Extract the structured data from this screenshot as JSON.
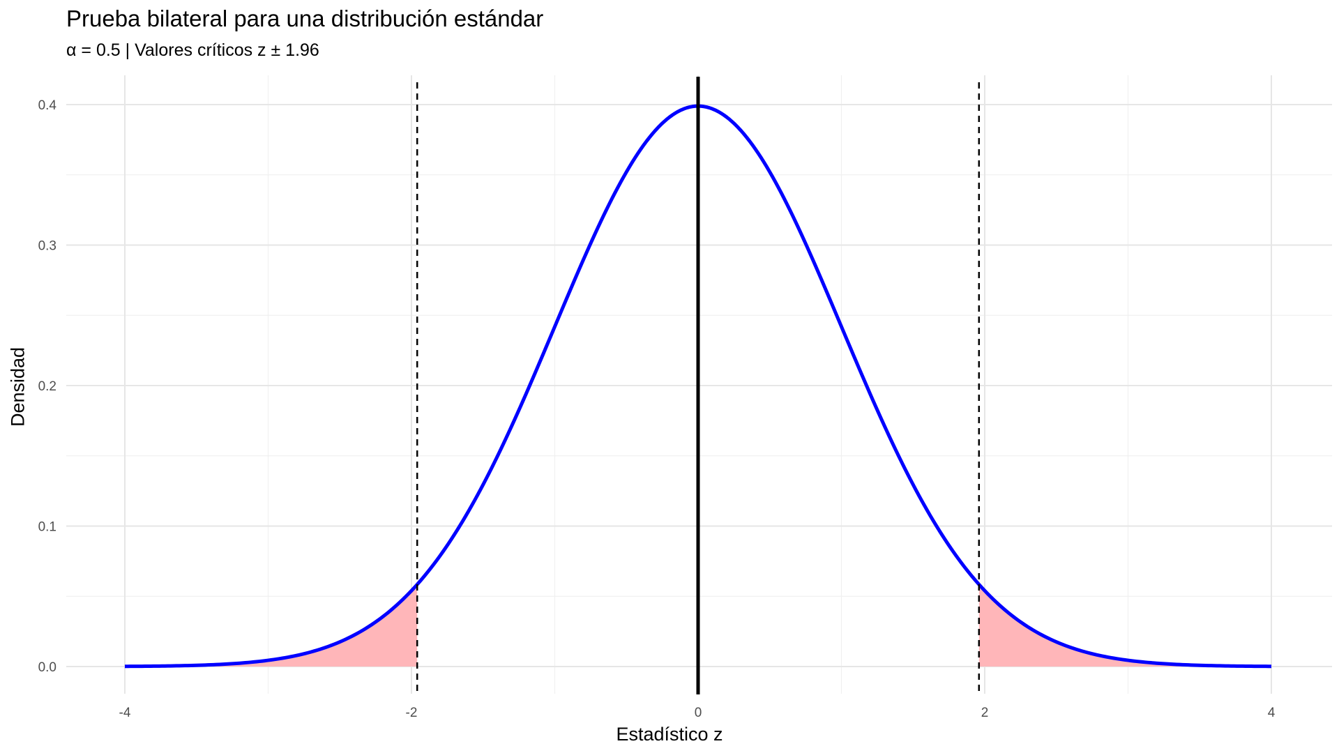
{
  "chart_data": {
    "type": "area",
    "title": "Prueba bilateral para una distribución estándar",
    "subtitle": "α = 0.5 | Valores críticos z ± 1.96",
    "xlabel": "Estadístico z",
    "ylabel": "Densidad",
    "xlim": [
      -4,
      4
    ],
    "ylim": [
      0,
      0.4
    ],
    "x_ticks": [
      -4,
      -2,
      0,
      2,
      4
    ],
    "x_tick_labels": [
      "-4",
      "-2",
      "0",
      "2",
      "4"
    ],
    "y_ticks": [
      0.0,
      0.1,
      0.2,
      0.3,
      0.4
    ],
    "y_tick_labels": [
      "0.0",
      "0.1",
      "0.2",
      "0.3",
      "0.4"
    ],
    "grid": true,
    "curve": {
      "x": [
        -4,
        -3.5,
        -3,
        -2.5,
        -2,
        -1.5,
        -1,
        -0.5,
        0,
        0.5,
        1,
        1.5,
        2,
        2.5,
        3,
        3.5,
        4
      ],
      "y": [
        0.0001,
        0.0009,
        0.0044,
        0.0175,
        0.054,
        0.1295,
        0.242,
        0.3521,
        0.3989,
        0.3521,
        0.242,
        0.1295,
        0.054,
        0.0175,
        0.0044,
        0.0009,
        0.0001
      ],
      "color": "#0000ff"
    },
    "critical_values": [
      -1.96,
      1.96
    ],
    "mean_line": 0,
    "shaded_regions": [
      [
        -4,
        -1.96
      ],
      [
        1.96,
        4
      ]
    ],
    "shade_color": "#ffb6b9"
  }
}
